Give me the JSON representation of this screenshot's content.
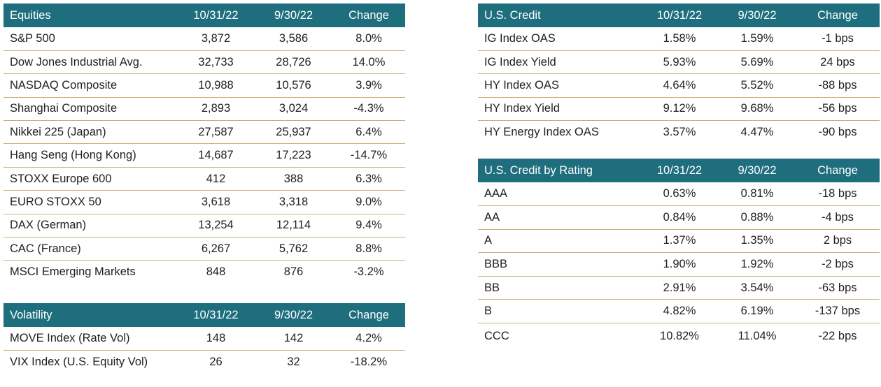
{
  "equities": {
    "headers": [
      "Equities",
      "10/31/22",
      "9/30/22",
      "Change"
    ],
    "rows": [
      [
        "S&P 500",
        "3,872",
        "3,586",
        "8.0%"
      ],
      [
        "Dow Jones Industrial Avg.",
        "32,733",
        "28,726",
        "14.0%"
      ],
      [
        "NASDAQ Composite",
        "10,988",
        "10,576",
        "3.9%"
      ],
      [
        "Shanghai Composite",
        "2,893",
        "3,024",
        "-4.3%"
      ],
      [
        "Nikkei 225 (Japan)",
        "27,587",
        "25,937",
        "6.4%"
      ],
      [
        "Hang Seng (Hong Kong)",
        "14,687",
        "17,223",
        "-14.7%"
      ],
      [
        "STOXX Europe 600",
        "412",
        "388",
        "6.3%"
      ],
      [
        "EURO STOXX 50",
        "3,618",
        "3,318",
        "9.0%"
      ],
      [
        "DAX (German)",
        "13,254",
        "12,114",
        "9.4%"
      ],
      [
        "CAC (France)",
        "6,267",
        "5,762",
        "8.8%"
      ],
      [
        "MSCI Emerging Markets",
        "848",
        "876",
        "-3.2%"
      ]
    ]
  },
  "volatility": {
    "headers": [
      "Volatility",
      "10/31/22",
      "9/30/22",
      "Change"
    ],
    "rows": [
      [
        "MOVE Index (Rate Vol)",
        "148",
        "142",
        "4.2%"
      ],
      [
        "VIX Index (U.S. Equity Vol)",
        "26",
        "32",
        "-18.2%"
      ]
    ]
  },
  "us_credit": {
    "headers": [
      "U.S. Credit",
      "10/31/22",
      "9/30/22",
      "Change"
    ],
    "rows": [
      [
        "IG Index OAS",
        "1.58%",
        "1.59%",
        "-1 bps"
      ],
      [
        "IG Index Yield",
        "5.93%",
        "5.69%",
        "24 bps"
      ],
      [
        "HY Index OAS",
        "4.64%",
        "5.52%",
        "-88 bps"
      ],
      [
        "HY Index Yield",
        "9.12%",
        "9.68%",
        "-56 bps"
      ],
      [
        "HY Energy Index OAS",
        "3.57%",
        "4.47%",
        "-90 bps"
      ]
    ]
  },
  "us_credit_by_rating": {
    "headers": [
      "U.S. Credit by Rating",
      "10/31/22",
      "9/30/22",
      "Change"
    ],
    "rows": [
      [
        "AAA",
        "0.63%",
        "0.81%",
        "-18 bps"
      ],
      [
        "AA",
        "0.84%",
        "0.88%",
        "-4 bps"
      ],
      [
        "A",
        "1.37%",
        "1.35%",
        "2 bps"
      ],
      [
        "BBB",
        "1.90%",
        "1.92%",
        "-2 bps"
      ],
      [
        "BB",
        "2.91%",
        "3.54%",
        "-63 bps"
      ],
      [
        "B",
        "4.82%",
        "6.19%",
        "-137 bps"
      ],
      [
        "CCC",
        "10.82%",
        "11.04%",
        "-22 bps"
      ]
    ]
  },
  "colors": {
    "header_background": "#1e6e7e",
    "header_text": "#ffffff",
    "row_divider": "#c9b27a"
  }
}
